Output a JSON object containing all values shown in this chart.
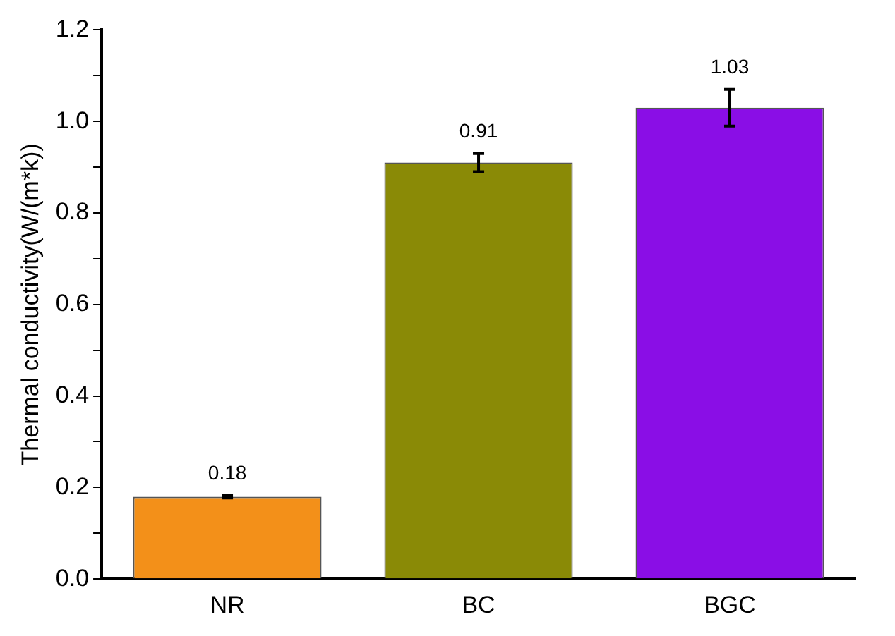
{
  "chart_data": {
    "type": "bar",
    "ylabel": "Thermal conductivity(W/(m*k))",
    "categories": [
      "NR",
      "BC",
      "BGC"
    ],
    "values": [
      0.18,
      0.91,
      1.03
    ],
    "colors": [
      "#f39019",
      "#8a8a06",
      "#8a0ee6"
    ],
    "errors": [
      0.003,
      0.02,
      0.04
    ],
    "data_labels": true,
    "ylim": [
      0,
      1.2
    ],
    "yticks": [
      {
        "value": 0,
        "label": "0.0"
      },
      {
        "value": 0.1,
        "label": null
      },
      0.2,
      {
        "value": 0.3,
        "label": null
      },
      0.4,
      {
        "value": 0.5,
        "label": null
      },
      0.6,
      {
        "value": 0.7,
        "label": null
      },
      0.8,
      {
        "value": 0.9,
        "label": null
      },
      {
        "value": 1,
        "label": "1.0"
      },
      {
        "value": 1.1,
        "label": null
      },
      1.2
    ],
    "grid": false,
    "legend": false
  }
}
